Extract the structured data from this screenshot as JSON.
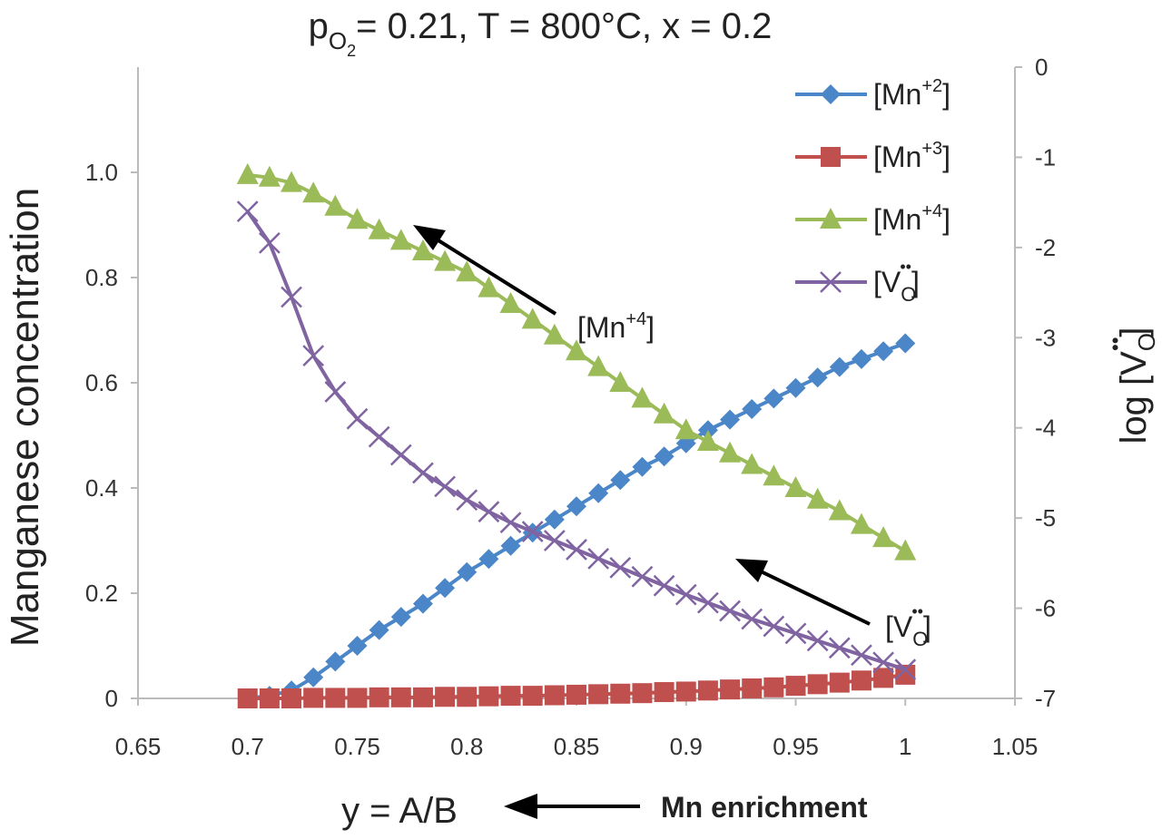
{
  "chart_data": {
    "type": "line",
    "title": {
      "p": "p",
      "sub": "O",
      "subsub": "2",
      "rest": "= 0.21, T = 800°C, x = 0.2"
    },
    "x_label": "y = A/B",
    "y_label": "Manganese concentration",
    "y2_label": {
      "main": "log [V",
      "sub": "O",
      "dots": "••",
      "end": "]"
    },
    "annotations": [
      {
        "main": "[Mn",
        "sup": "+4",
        "end": "]"
      },
      {
        "main": "[V",
        "sub": "O",
        "dots": "••",
        "end": "]"
      },
      {
        "text": "Mn enrichment"
      }
    ],
    "x": [
      0.7,
      0.71,
      0.72,
      0.73,
      0.74,
      0.75,
      0.76,
      0.77,
      0.78,
      0.79,
      0.8,
      0.81,
      0.82,
      0.83,
      0.84,
      0.85,
      0.86,
      0.87,
      0.88,
      0.89,
      0.9,
      0.91,
      0.92,
      0.93,
      0.94,
      0.95,
      0.96,
      0.97,
      0.98,
      0.99,
      1.0
    ],
    "series": [
      {
        "name": {
          "main": "[Mn",
          "sup": "+2",
          "end": "]"
        },
        "color": "#4a86c8",
        "marker": "diamond",
        "values": [
          0.0,
          0.005,
          0.015,
          0.04,
          0.07,
          0.1,
          0.13,
          0.155,
          0.18,
          0.21,
          0.24,
          0.265,
          0.29,
          0.315,
          0.34,
          0.365,
          0.39,
          0.415,
          0.44,
          0.46,
          0.485,
          0.51,
          0.53,
          0.55,
          0.57,
          0.59,
          0.61,
          0.63,
          0.645,
          0.66,
          0.675
        ]
      },
      {
        "name": {
          "main": "[Mn",
          "sup": "+3",
          "end": "]"
        },
        "color": "#c0504d",
        "marker": "square",
        "values": [
          0.0,
          0.0,
          0.0,
          0.001,
          0.001,
          0.001,
          0.002,
          0.002,
          0.002,
          0.003,
          0.003,
          0.004,
          0.005,
          0.005,
          0.006,
          0.007,
          0.008,
          0.009,
          0.01,
          0.012,
          0.013,
          0.015,
          0.017,
          0.019,
          0.021,
          0.024,
          0.027,
          0.03,
          0.034,
          0.039,
          0.045
        ]
      },
      {
        "name": {
          "main": "[Mn",
          "sup": "+4",
          "end": "]"
        },
        "color": "#9bbb59",
        "marker": "triangle",
        "values": [
          0.995,
          0.99,
          0.98,
          0.96,
          0.935,
          0.91,
          0.89,
          0.87,
          0.85,
          0.83,
          0.81,
          0.78,
          0.75,
          0.72,
          0.69,
          0.66,
          0.63,
          0.6,
          0.57,
          0.54,
          0.51,
          0.488,
          0.466,
          0.444,
          0.422,
          0.4,
          0.378,
          0.356,
          0.33,
          0.305,
          0.28
        ]
      },
      {
        "name": {
          "main": "[V",
          "sub": "O",
          "dots": "••",
          "end": "]"
        },
        "color": "#8064a2",
        "marker": "x",
        "axis": "y2",
        "values": [
          -1.6,
          -1.95,
          -2.55,
          -3.2,
          -3.6,
          -3.9,
          -4.1,
          -4.3,
          -4.5,
          -4.65,
          -4.8,
          -4.93,
          -5.05,
          -5.15,
          -5.25,
          -5.35,
          -5.45,
          -5.55,
          -5.65,
          -5.75,
          -5.85,
          -5.94,
          -6.03,
          -6.12,
          -6.2,
          -6.28,
          -6.36,
          -6.44,
          -6.52,
          -6.6,
          -6.68
        ]
      }
    ],
    "xlim": [
      0.65,
      1.05
    ],
    "xticks": [
      0.65,
      0.7,
      0.75,
      0.8,
      0.85,
      0.9,
      0.95,
      1,
      1.05
    ],
    "ylim": [
      0,
      1.2
    ],
    "yticks": [
      0,
      0.2,
      0.4,
      0.6,
      0.8,
      {
        "value": 1,
        "label": "1.0"
      }
    ],
    "y2lim": [
      -7,
      0
    ],
    "y2ticks": [
      0,
      -1,
      -2,
      -3,
      -4,
      -5,
      -6,
      -7
    ],
    "legend": "upper right"
  }
}
